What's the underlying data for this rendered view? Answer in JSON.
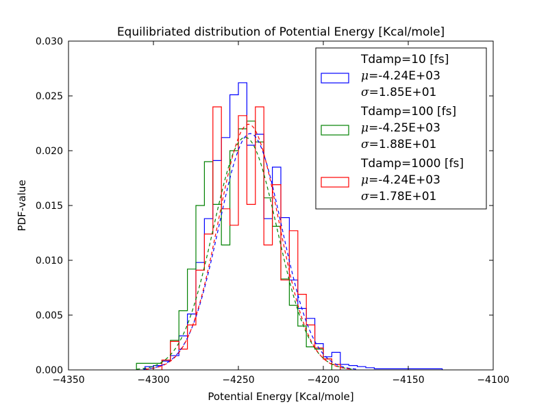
{
  "chart_data": {
    "type": "histogram-step",
    "title": "Equilibriated distribution of Potential Energy [Kcal/mole]",
    "xlabel": "Potential Energy [Kcal/mole]",
    "ylabel": "PDF-value",
    "xlim": [
      -4350,
      -4100
    ],
    "ylim": [
      0,
      0.03
    ],
    "xticks": [
      -4350,
      -4300,
      -4250,
      -4200,
      -4150,
      -4100
    ],
    "xtick_labels": [
      "−4350",
      "−4300",
      "−4250",
      "−4200",
      "−4150",
      "−4100"
    ],
    "yticks": [
      0.0,
      0.005,
      0.01,
      0.015,
      0.02,
      0.025,
      0.03
    ],
    "ytick_labels": [
      "0.000",
      "0.005",
      "0.010",
      "0.015",
      "0.020",
      "0.025",
      "0.030"
    ],
    "grid": false,
    "legend_position": "top-right",
    "series": [
      {
        "name": "Tdamp=10 [fs]",
        "mu_label": "=-4.24E+03",
        "sigma_label": "=1.85E+01",
        "mu": -4243,
        "sigma": 18.5,
        "color": "#0000ff",
        "edges": [
          -4305,
          -4300,
          -4295,
          -4290,
          -4285,
          -4280,
          -4275,
          -4270,
          -4265,
          -4260,
          -4255,
          -4250,
          -4245,
          -4240,
          -4235,
          -4230,
          -4225,
          -4220,
          -4215,
          -4210,
          -4205,
          -4200,
          -4195,
          -4190,
          -4185,
          -4180,
          -4175,
          -4170,
          -4165,
          -4160,
          -4155,
          -4150,
          -4145,
          -4140,
          -4135,
          -4130
        ],
        "values": [
          0.0003,
          0.0004,
          0.0008,
          0.0013,
          0.0031,
          0.0051,
          0.0098,
          0.0138,
          0.0191,
          0.0212,
          0.0251,
          0.0262,
          0.0205,
          0.0215,
          0.0138,
          0.0185,
          0.0139,
          0.0082,
          0.0056,
          0.0047,
          0.0024,
          0.0012,
          0.0016,
          0.0005,
          0.0004,
          0.0003,
          0.0002,
          0.0001,
          0.0001,
          0.0001,
          0.0001,
          0.0001,
          0.0001,
          0.0001,
          0.0001
        ]
      },
      {
        "name": "Tdamp=100 [fs]",
        "mu_label": "=-4.25E+03",
        "sigma_label": "=1.88E+01",
        "mu": -4246,
        "sigma": 18.8,
        "color": "#008000",
        "edges": [
          -4310,
          -4305,
          -4300,
          -4295,
          -4290,
          -4285,
          -4280,
          -4275,
          -4270,
          -4265,
          -4260,
          -4255,
          -4250,
          -4245,
          -4240,
          -4235,
          -4230,
          -4225,
          -4220,
          -4215,
          -4210,
          -4205,
          -4200,
          -4195
        ],
        "values": [
          0.0006,
          0.0006,
          0.0006,
          0.0009,
          0.0027,
          0.0054,
          0.0092,
          0.015,
          0.019,
          0.0151,
          0.0114,
          0.02,
          0.022,
          0.0227,
          0.0208,
          0.0157,
          0.0131,
          0.0083,
          0.0059,
          0.004,
          0.0021,
          0.0019,
          0.001
        ]
      },
      {
        "name": "Tdamp=1000 [fs]",
        "mu_label": "=-4.24E+03",
        "sigma_label": "=1.78E+01",
        "mu": -4244,
        "sigma": 17.8,
        "color": "#ff0000",
        "edges": [
          -4295,
          -4290,
          -4285,
          -4280,
          -4275,
          -4270,
          -4265,
          -4260,
          -4255,
          -4250,
          -4245,
          -4240,
          -4235,
          -4230,
          -4225,
          -4220,
          -4215,
          -4210,
          -4205,
          -4200,
          -4195,
          -4190
        ],
        "values": [
          0.0009,
          0.0026,
          0.0019,
          0.0041,
          0.0091,
          0.0124,
          0.024,
          0.0147,
          0.0132,
          0.0232,
          0.0151,
          0.024,
          0.0114,
          0.0169,
          0.0082,
          0.0127,
          0.0069,
          0.0041,
          0.002,
          0.001,
          0.0005
        ]
      }
    ]
  }
}
